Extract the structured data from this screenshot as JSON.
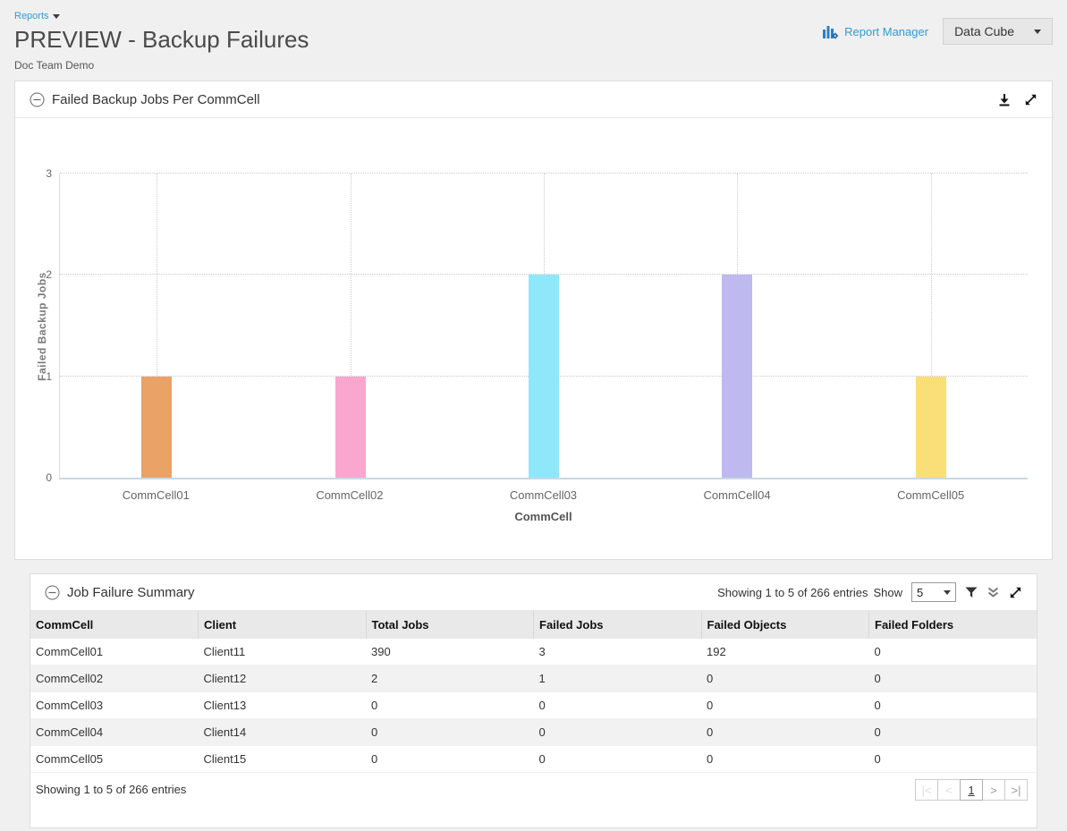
{
  "header": {
    "breadcrumb": "Reports",
    "title": "PREVIEW - Backup Failures",
    "subtitle": "Doc Team Demo",
    "report_manager_label": "Report Manager",
    "data_cube_label": "Data Cube"
  },
  "colors": {
    "link_blue": "#2e9bd6",
    "page_background": "#f0f0f0",
    "table_header_bg": "#e9e9e9",
    "alt_row_bg": "#f2f2f2"
  },
  "icons": {
    "breadcrumb_caret": "caret-down",
    "report_manager": "bar-chart-with-gear",
    "datacube_caret": "caret-down",
    "panel_collapse": "circle-minus",
    "chart_download": "download-arrow",
    "chart_expand": "diagonal-resize-arrows",
    "table_filter": "funnel",
    "table_collapse_all": "double-chevron-down",
    "table_expand": "diagonal-resize-arrows"
  },
  "chart_panel": {
    "title": "Failed Backup Jobs Per CommCell"
  },
  "chart_data": {
    "type": "bar",
    "title": "Failed Backup Jobs Per CommCell",
    "categories": [
      "CommCell01",
      "CommCell02",
      "CommCell03",
      "CommCell04",
      "CommCell05"
    ],
    "values": [
      1,
      1,
      2,
      2,
      1
    ],
    "bar_colors": [
      "#EAA266",
      "#FAA6CE",
      "#8FE8FA",
      "#BEB9EF",
      "#FADF79"
    ],
    "xlabel": "CommCell",
    "ylabel": "Failed Backup Jobs",
    "ylim": [
      0,
      3
    ],
    "yticks": [
      0,
      1,
      2,
      3
    ],
    "grid": "dotted horizontal and vertical at category centers",
    "legend": "none"
  },
  "table_panel": {
    "title": "Job Failure Summary",
    "showing_text": "Showing 1 to 5 of 266 entries",
    "show_label": "Show",
    "page_size": "5",
    "columns": [
      "CommCell",
      "Client",
      "Total Jobs",
      "Failed Jobs",
      "Failed Objects",
      "Failed Folders"
    ],
    "rows": [
      [
        "CommCell01",
        "Client11",
        "390",
        "3",
        "192",
        "0"
      ],
      [
        "CommCell02",
        "Client12",
        "2",
        "1",
        "0",
        "0"
      ],
      [
        "CommCell03",
        "Client13",
        "0",
        "0",
        "0",
        "0"
      ],
      [
        "CommCell04",
        "Client14",
        "0",
        "0",
        "0",
        "0"
      ],
      [
        "CommCell05",
        "Client15",
        "0",
        "0",
        "0",
        "0"
      ]
    ],
    "footer_text": "Showing 1 to 5 of 266 entries",
    "pagination": {
      "first": "|<",
      "prev": "<",
      "page": "1",
      "next": ">",
      "last": ">|"
    }
  }
}
